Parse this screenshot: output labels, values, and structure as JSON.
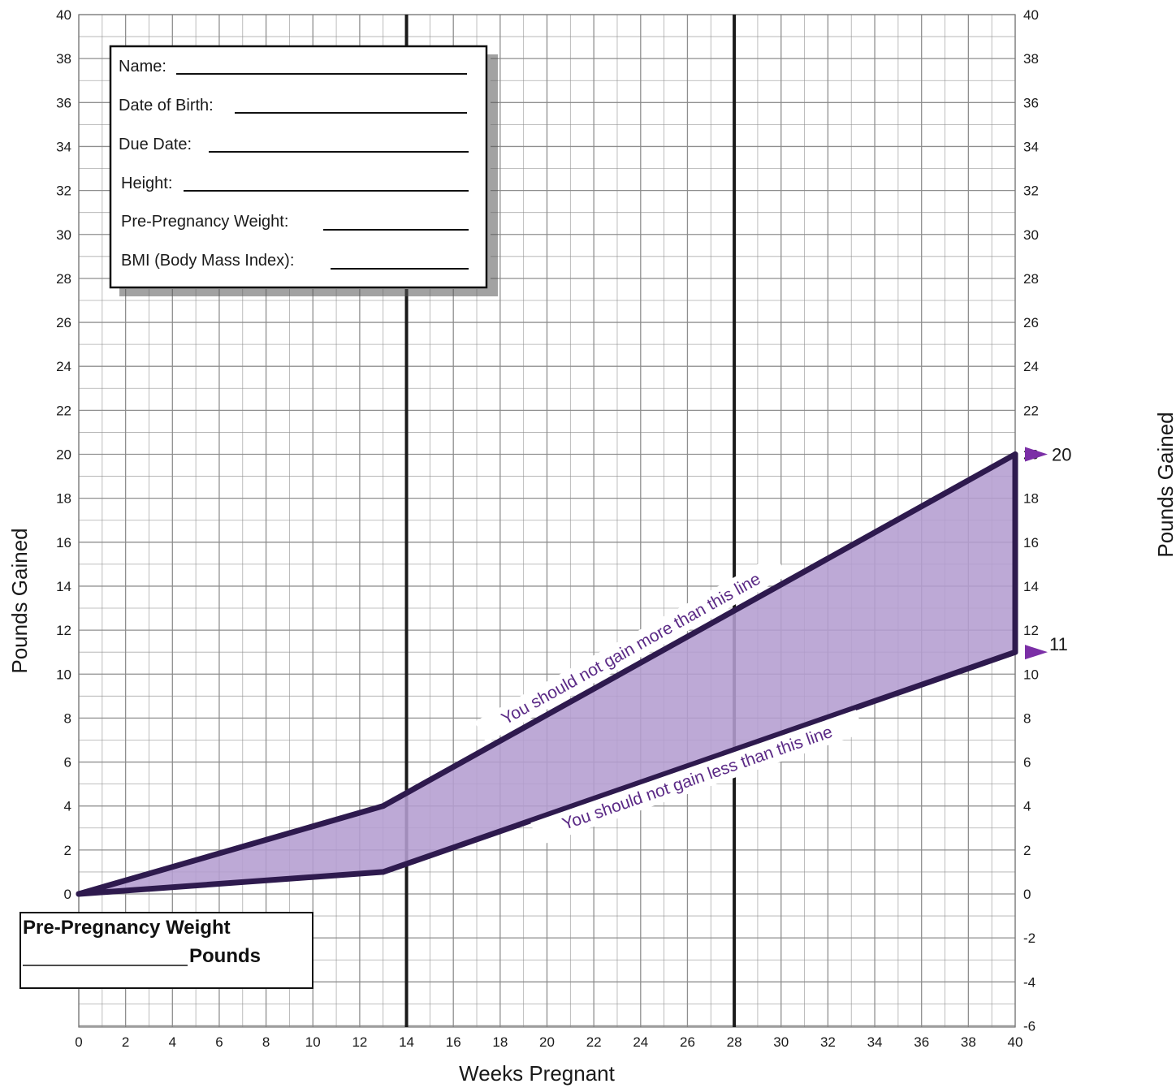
{
  "chart_data": {
    "type": "area",
    "title": "",
    "xlabel": "Weeks Pregnant",
    "ylabel": "Pounds Gained",
    "ylabel_right": "Pounds Gained",
    "xlim": [
      0,
      40
    ],
    "ylim": [
      -6,
      40
    ],
    "x_ticks": [
      "0",
      "2",
      "4",
      "6",
      "8",
      "10",
      "12",
      "14",
      "16",
      "18",
      "20",
      "22",
      "24",
      "26",
      "28",
      "30",
      "32",
      "34",
      "36",
      "38",
      "40"
    ],
    "y_ticks_left": [
      "0",
      "2",
      "4",
      "6",
      "8",
      "10",
      "12",
      "14",
      "16",
      "18",
      "20",
      "22",
      "24",
      "26",
      "28",
      "30",
      "32",
      "34",
      "36",
      "38",
      "40"
    ],
    "y_ticks_right": [
      "-6",
      "-4",
      "-2",
      "0",
      "2",
      "4",
      "6",
      "8",
      "10",
      "12",
      "14",
      "16",
      "18",
      "20",
      "22",
      "24",
      "26",
      "28",
      "30",
      "32",
      "34",
      "36",
      "38",
      "40"
    ],
    "trimester_lines_x": [
      14,
      28
    ],
    "grid": true,
    "series": [
      {
        "x": [
          0,
          13,
          40
        ],
        "y": [
          0,
          4,
          20
        ]
      },
      {
        "x": [
          0,
          13,
          40
        ],
        "y": [
          0,
          1,
          11
        ]
      }
    ],
    "annotations": [
      {
        "text": "You should not gain more than this line",
        "target_series": 0
      },
      {
        "text": "You should not gain less than this line",
        "target_series": 1
      }
    ],
    "end_markers": [
      "20",
      "11"
    ],
    "colors": {
      "fill": "#b49dd0",
      "line": "#2e1a4e",
      "marker": "#7b2fa6",
      "note": "#5b2a86",
      "grid": "#8a8a8a"
    }
  },
  "form": {
    "fields": [
      "Name:",
      "Date of Birth:",
      "Due Date:",
      "Height:",
      "Pre-Pregnancy Weight:",
      "BMI (Body Mass Index):"
    ]
  },
  "pre_pregnancy_box": {
    "line1": "Pre-Pregnancy Weight",
    "line2": "Pounds"
  }
}
